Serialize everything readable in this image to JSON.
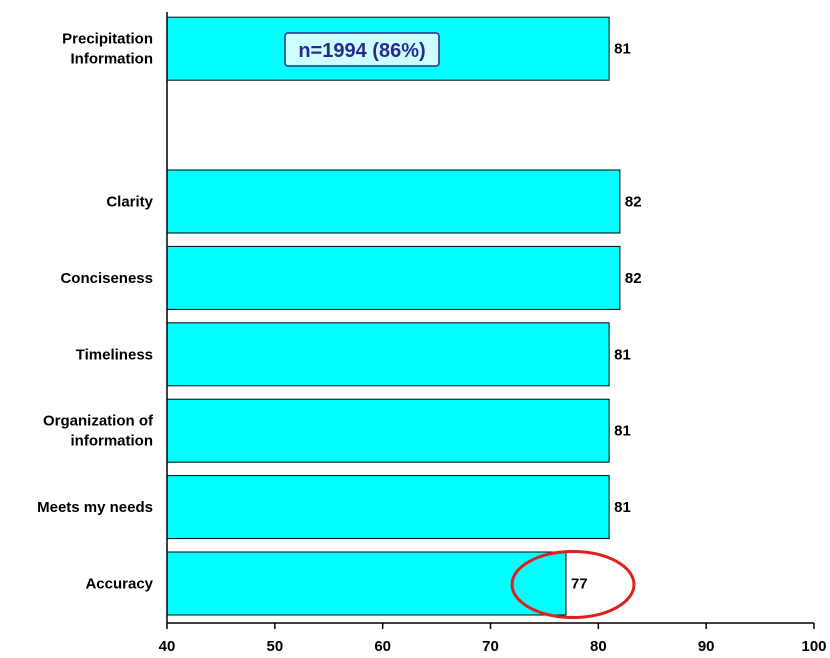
{
  "chart_data": {
    "type": "bar",
    "orientation": "horizontal",
    "categories": [
      "Precipitation Information",
      "Clarity",
      "Conciseness",
      "Timeliness",
      "Organization of information",
      "Meets my needs",
      "Accuracy"
    ],
    "category_label_lines": [
      [
        "Precipitation",
        "Information"
      ],
      [
        "Clarity"
      ],
      [
        "Conciseness"
      ],
      [
        "Timeliness"
      ],
      [
        "Organization of",
        "information"
      ],
      [
        "Meets my needs"
      ],
      [
        "Accuracy"
      ]
    ],
    "values": [
      81,
      82,
      82,
      81,
      81,
      81,
      77
    ],
    "value_labels": [
      "81",
      "82",
      "82",
      "81",
      "81",
      "81",
      "77"
    ],
    "xlim": [
      40,
      100
    ],
    "x_ticks": [
      40,
      50,
      60,
      70,
      80,
      90,
      100
    ],
    "x_tick_labels": [
      "40",
      "50",
      "60",
      "70",
      "80",
      "90",
      "100"
    ],
    "title": "",
    "xlabel": "",
    "ylabel": "",
    "grid": false,
    "bar_color": "#00ffff",
    "annotation": {
      "text": "n=1994 (86%)",
      "text_color": "#2a2a8c",
      "box_fill": "#ccffff",
      "box_border": "#2a2a8c"
    },
    "highlight": {
      "category": "Accuracy",
      "shape": "ellipse",
      "color": "#e02020"
    }
  }
}
